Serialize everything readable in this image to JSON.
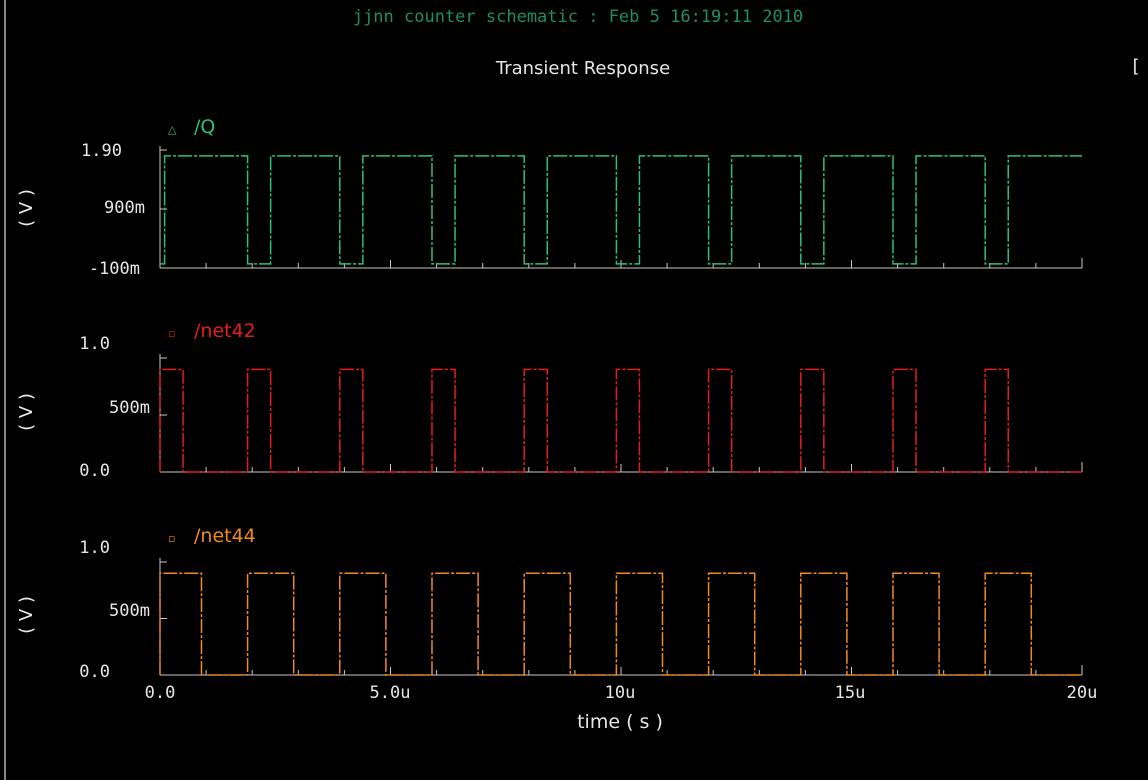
{
  "window": {
    "header": "jjnn counter schematic : Feb  5 16:19:11 2010",
    "title": "Transient Response",
    "corner_mark": "["
  },
  "colors": {
    "background": "#000000",
    "axis": "#c8c8c8",
    "text": "#e6e6e6",
    "header_text": "#1e8c6a",
    "q": "#2fbf7a",
    "net42": "#e21e1e",
    "net44": "#f08a1e"
  },
  "chart_data": {
    "type": "line",
    "title": "Transient Response",
    "xlabel": "time ( s )",
    "xlim": [
      0,
      20
    ],
    "x_unit": "u",
    "x_tick_labels": [
      "0.0",
      "5.0u",
      "10u",
      "15u",
      "20u"
    ],
    "y_axis_label": "( V )",
    "panels": [
      {
        "id": "q",
        "legend_marker": "△",
        "legend_name": "/Q",
        "color": "#2fbf7a",
        "ylim": [
          -0.1,
          1.9
        ],
        "y_tick_labels": [
          "1.90",
          "900m",
          "-100m"
        ],
        "low": -0.03,
        "high": 1.8,
        "series": {
          "name": "/Q",
          "transitions_us": [
            0.1,
            1.9,
            2.4,
            3.9,
            4.4,
            5.9,
            6.4,
            7.9,
            8.4,
            9.9,
            10.4,
            11.9,
            12.4,
            13.9,
            14.4,
            15.9,
            16.4,
            17.9,
            18.4
          ],
          "initial": "low"
        }
      },
      {
        "id": "net42",
        "legend_marker": "▫",
        "legend_name": "/net42",
        "color": "#e21e1e",
        "ylim": [
          0,
          1.0
        ],
        "y_tick_labels": [
          "1.0",
          "500m",
          "0.0"
        ],
        "low": 0.0,
        "high": 0.9,
        "series": {
          "name": "/net42",
          "transitions_us": [
            0.0,
            0.5,
            1.9,
            2.4,
            3.9,
            4.4,
            5.9,
            6.4,
            7.9,
            8.4,
            9.9,
            10.4,
            11.9,
            12.4,
            13.9,
            14.4,
            15.9,
            16.4,
            17.9,
            18.4
          ],
          "initial": "low"
        }
      },
      {
        "id": "net44",
        "legend_marker": "▫",
        "legend_name": "/net44",
        "color": "#f08a1e",
        "ylim": [
          0,
          1.0
        ],
        "y_tick_labels": [
          "1.0",
          "500m",
          "0.0"
        ],
        "low": 0.0,
        "high": 0.9,
        "series": {
          "name": "/net44",
          "transitions_us": [
            0.0,
            0.9,
            1.9,
            2.9,
            3.9,
            4.9,
            5.9,
            6.9,
            7.9,
            8.9,
            9.9,
            10.9,
            11.9,
            12.9,
            13.9,
            14.9,
            15.9,
            16.9,
            17.9,
            18.9
          ],
          "initial": "low"
        }
      }
    ]
  }
}
